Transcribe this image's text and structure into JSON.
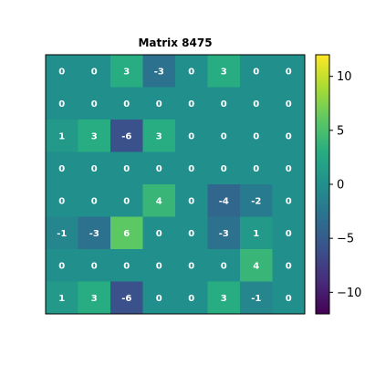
{
  "chart_data": {
    "type": "heatmap",
    "title": "Matrix 8475",
    "rows": 8,
    "cols": 8,
    "values": [
      [
        0,
        0,
        3,
        -3,
        0,
        3,
        0,
        0
      ],
      [
        0,
        0,
        0,
        0,
        0,
        0,
        0,
        0
      ],
      [
        1,
        3,
        -6,
        3,
        0,
        0,
        0,
        0
      ],
      [
        0,
        0,
        0,
        0,
        0,
        0,
        0,
        0
      ],
      [
        0,
        0,
        0,
        4,
        0,
        -4,
        -2,
        0
      ],
      [
        -1,
        -3,
        6,
        0,
        0,
        -3,
        1,
        0
      ],
      [
        0,
        0,
        0,
        0,
        0,
        0,
        4,
        0
      ],
      [
        1,
        3,
        -6,
        0,
        0,
        3,
        -1,
        0
      ]
    ],
    "colormap": "viridis",
    "vmin": -12,
    "vmax": 12,
    "colorbar_ticks": [
      10,
      5,
      0,
      -5,
      -10
    ],
    "colorbar_tick_labels": [
      "10",
      "5",
      "0",
      "−5",
      "−10"
    ],
    "grid": false
  }
}
